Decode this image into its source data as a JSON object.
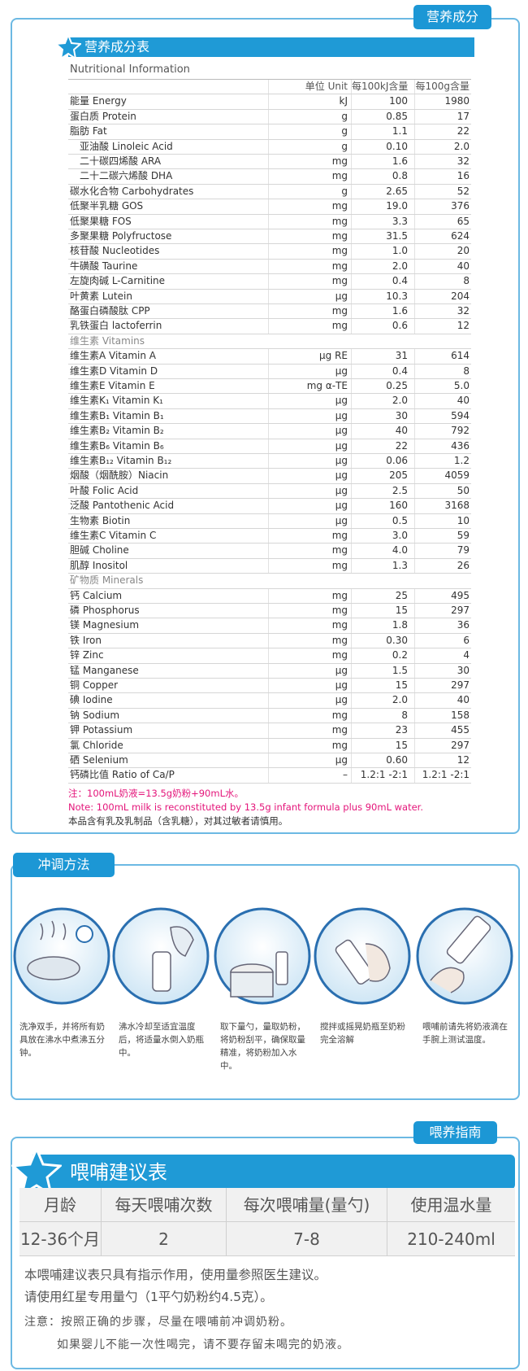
{
  "nutrition": {
    "tab": "营养成分",
    "title": "营养成分表",
    "subtitle": "Nutritional Information",
    "header": [
      "单位 Unit",
      "每100kJ含量",
      "每100g含量"
    ],
    "rows": [
      [
        "能量 Energy",
        "kJ",
        "100",
        "1980"
      ],
      [
        "蛋白质 Protein",
        "g",
        "0.85",
        "17"
      ],
      [
        "脂肪 Fat",
        "g",
        "1.1",
        "22"
      ],
      [
        "亚油酸 Linoleic Acid",
        "g",
        "0.10",
        "2.0"
      ],
      [
        "二十碳四烯酸 ARA",
        "mg",
        "1.6",
        "32"
      ],
      [
        "二十二碳六烯酸 DHA",
        "mg",
        "0.8",
        "16"
      ],
      [
        "碳水化合物 Carbohydrates",
        "g",
        "2.65",
        "52"
      ],
      [
        "低聚半乳糖 GOS",
        "mg",
        "19.0",
        "376"
      ],
      [
        "低聚果糖 FOS",
        "mg",
        "3.3",
        "65"
      ],
      [
        "多聚果糖 Polyfructose",
        "mg",
        "31.5",
        "624"
      ],
      [
        "核苷酸 Nucleotides",
        "mg",
        "1.0",
        "20"
      ],
      [
        "牛磺酸 Taurine",
        "mg",
        "2.0",
        "40"
      ],
      [
        "左旋肉碱 L-Carnitine",
        "mg",
        "0.4",
        "8"
      ],
      [
        "叶黄素 Lutein",
        "μg",
        "10.3",
        "204"
      ],
      [
        "酪蛋白磷酸肽 CPP",
        "mg",
        "1.6",
        "32"
      ],
      [
        "乳铁蛋白 lactoferrin",
        "mg",
        "0.6",
        "12"
      ],
      [
        "维生素 Vitamins"
      ],
      [
        "维生素A Vitamin A",
        "μg RE",
        "31",
        "614"
      ],
      [
        "维生素D Vitamin D",
        "μg",
        "0.4",
        "8"
      ],
      [
        "维生素E Vitamin E",
        "mg α-TE",
        "0.25",
        "5.0"
      ],
      [
        "维生素K₁ Vitamin K₁",
        "μg",
        "2.0",
        "40"
      ],
      [
        "维生素B₁ Vitamin B₁",
        "μg",
        "30",
        "594"
      ],
      [
        "维生素B₂ Vitamin B₂",
        "μg",
        "40",
        "792"
      ],
      [
        "维生素B₆ Vitamin B₆",
        "μg",
        "22",
        "436"
      ],
      [
        "维生素B₁₂ Vitamin B₁₂",
        "μg",
        "0.06",
        "1.2"
      ],
      [
        "烟酸（烟酰胺）Niacin",
        "μg",
        "205",
        "4059"
      ],
      [
        "叶酸 Folic Acid",
        "μg",
        "2.5",
        "50"
      ],
      [
        "泛酸 Pantothenic Acid",
        "μg",
        "160",
        "3168"
      ],
      [
        "生物素 Biotin",
        "μg",
        "0.5",
        "10"
      ],
      [
        "维生素C Vitamin C",
        "mg",
        "3.0",
        "59"
      ],
      [
        "胆碱 Choline",
        "mg",
        "4.0",
        "79"
      ],
      [
        "肌醇 Inositol",
        "mg",
        "1.3",
        "26"
      ],
      [
        "矿物质 Minerals"
      ],
      [
        "钙 Calcium",
        "mg",
        "25",
        "495"
      ],
      [
        "磷 Phosphorus",
        "mg",
        "15",
        "297"
      ],
      [
        "镁 Magnesium",
        "mg",
        "1.8",
        "36"
      ],
      [
        "铁 Iron",
        "mg",
        "0.30",
        "6"
      ],
      [
        "锌 Zinc",
        "mg",
        "0.2",
        "4"
      ],
      [
        "锰 Manganese",
        "μg",
        "1.5",
        "30"
      ],
      [
        "铜 Copper",
        "μg",
        "15",
        "297"
      ],
      [
        "碘 Iodine",
        "μg",
        "2.0",
        "40"
      ],
      [
        "钠 Sodium",
        "mg",
        "8",
        "158"
      ],
      [
        "钾 Potassium",
        "mg",
        "23",
        "455"
      ],
      [
        "氯 Chloride",
        "mg",
        "15",
        "297"
      ],
      [
        "硒 Selenium",
        "μg",
        "0.60",
        "12"
      ],
      [
        "钙磷比值 Ratio of Ca/P",
        "–",
        "1.2:1 -2:1",
        "1.2:1 -2:1"
      ]
    ],
    "notes": [
      "注：100mL奶液=13.5g奶粉+90mL水。",
      "Note: 100mL milk is reconstituted by 13.5g infant formula plus 90mL water.",
      "本品含有乳及乳制品（含乳糖），对其过敏者请慎用。"
    ]
  },
  "preparation": {
    "tab": "冲调方法",
    "steps": [
      "洗净双手，并将所有奶具放在沸水中煮沸五分钟。",
      "沸水冷却至适宜温度后，将适量水倒入奶瓶中。",
      "取下量勺，量取奶粉，将奶粉刮平，确保取量精准，将奶粉加入水中。",
      "搅拌或摇晃奶瓶至奶粉完全溶解",
      "喂哺前请先将奶液滴在手腕上测试温度。"
    ]
  },
  "feeding": {
    "tab": "喂养指南",
    "title": "喂哺建议表",
    "header": [
      "月龄",
      "每天喂哺次数",
      "每次喂哺量(量勺)",
      "使用温水量"
    ],
    "rows": [
      [
        "12-36个月",
        "2",
        "7-8",
        "210-240ml"
      ]
    ],
    "notes": [
      "本喂哺建议表只具有指示作用，使用量参照医生建议。",
      "请使用红星专用量勺（1平勺奶粉约4.5克）。",
      "注意：按照正确的步骤，尽量在喂哺前冲调奶粉。",
      "如果婴儿不能一次性喝完，请不要存留未喝完的奶液。"
    ]
  }
}
